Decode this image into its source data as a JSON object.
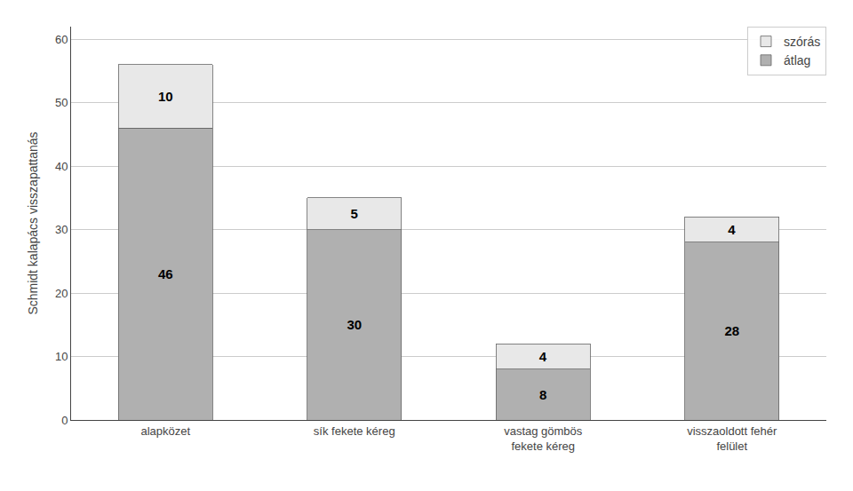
{
  "chart_data": {
    "type": "bar",
    "stacked": true,
    "categories": [
      "alapközet",
      "sík fekete kéreg",
      "vastag gömbös\nfekete kéreg",
      "visszaoldott fehér\nfelület"
    ],
    "series": [
      {
        "name": "átlag",
        "color": "#b0b0b0",
        "values": [
          46,
          30,
          8,
          28
        ]
      },
      {
        "name": "szórás",
        "color": "#e8e8e8",
        "values": [
          10,
          5,
          4,
          4
        ]
      }
    ],
    "ylabel": "Schmidt kalapács visszapattanás",
    "ylim": [
      0,
      62
    ],
    "yticks": [
      0,
      10,
      20,
      30,
      40,
      50,
      60
    ],
    "grid": true,
    "legend": "upper right",
    "data_labels": true
  }
}
